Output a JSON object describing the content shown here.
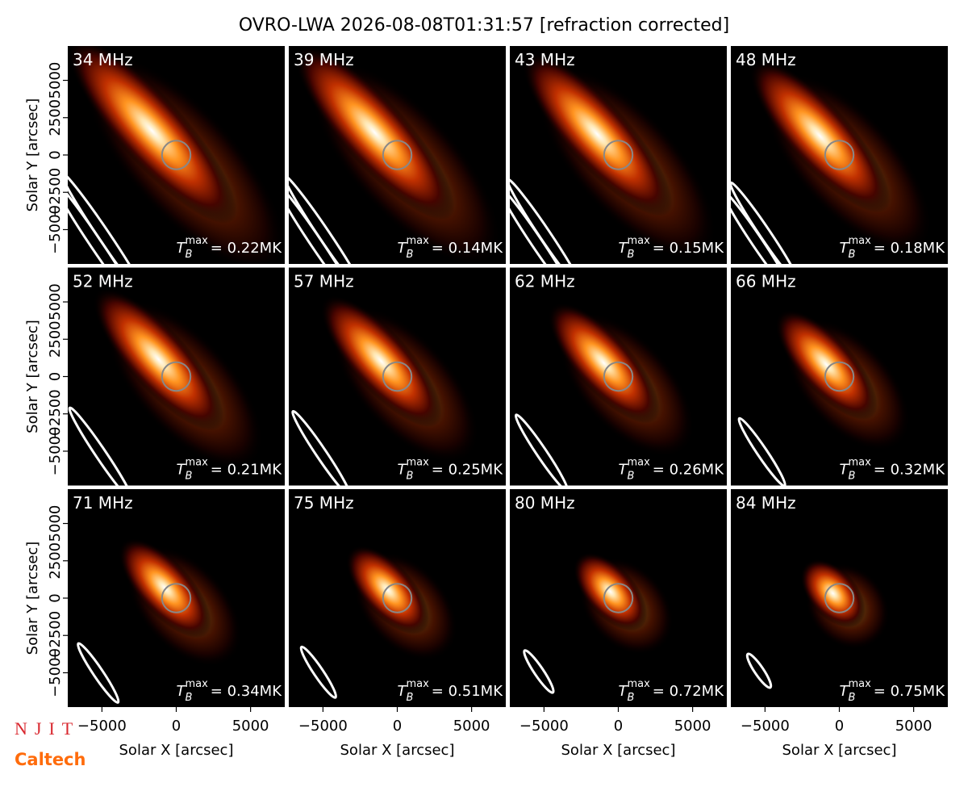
{
  "title": "OVRO-LWA 2026-08-08T01:31:57 [refraction corrected]",
  "x_label": "Solar X [arcsec]",
  "y_label": "Solar Y [arcsec]",
  "xlim": [
    -7300,
    7300
  ],
  "ylim": [
    -7300,
    7300
  ],
  "xticks": [
    {
      "value": -5000,
      "label": "−5000"
    },
    0,
    5000
  ],
  "yticks": [
    {
      "value": -5000,
      "label": "−5000"
    },
    {
      "value": -2500,
      "label": "−2500"
    },
    0,
    2500,
    5000
  ],
  "tb_symbol": "T",
  "tb_sub": "B",
  "tb_sup": "max",
  "panels": [
    {
      "frequency": "34 MHz",
      "tb": "= 0.22MK"
    },
    {
      "frequency": "39 MHz",
      "tb": "= 0.14MK"
    },
    {
      "frequency": "43 MHz",
      "tb": "= 0.15MK"
    },
    {
      "frequency": "48 MHz",
      "tb": "= 0.18MK"
    },
    {
      "frequency": "52 MHz",
      "tb": "= 0.21MK"
    },
    {
      "frequency": "57 MHz",
      "tb": "= 0.25MK"
    },
    {
      "frequency": "62 MHz",
      "tb": "= 0.26MK"
    },
    {
      "frequency": "66 MHz",
      "tb": "= 0.32MK"
    },
    {
      "frequency": "71 MHz",
      "tb": "= 0.34MK"
    },
    {
      "frequency": "75 MHz",
      "tb": "= 0.51MK"
    },
    {
      "frequency": "80 MHz",
      "tb": "= 0.72MK"
    },
    {
      "frequency": "84 MHz",
      "tb": "= 0.75MK"
    }
  ],
  "logos": [
    "NJIT",
    "Caltech"
  ]
}
